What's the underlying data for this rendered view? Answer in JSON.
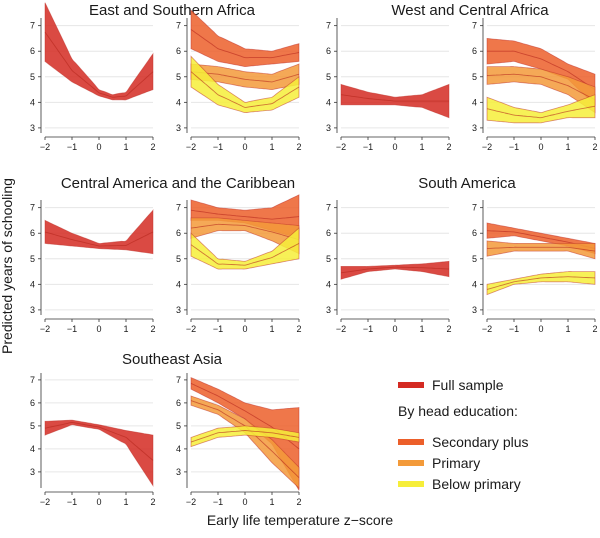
{
  "figure": {
    "xlabel": "Early life temperature z−score",
    "ylabel": "Predicted years of schooling"
  },
  "legend": {
    "items": [
      {
        "label": "Full sample",
        "color": "#d42a22"
      },
      {
        "label": "Secondary plus",
        "color": "#ec5f2a"
      },
      {
        "label": "Primary",
        "color": "#f39a3a"
      },
      {
        "label": "Below primary",
        "color": "#f6ee3a"
      }
    ],
    "subheader": "By head education:"
  },
  "chart_data": [
    {
      "type": "area",
      "title": "East and Southern Africa",
      "xlim": [
        -2,
        2
      ],
      "ylim": [
        2.8,
        7.3
      ],
      "xticks": [
        -2,
        -1,
        0,
        1,
        2
      ],
      "yticks": [
        3,
        4,
        5,
        6,
        7
      ],
      "series": [
        {
          "name": "Full sample",
          "color": "#d42a22",
          "x": [
            -2,
            -1,
            0,
            0.5,
            1,
            2
          ],
          "lower": [
            5.6,
            4.8,
            4.25,
            4.1,
            4.1,
            4.5
          ],
          "upper": [
            7.9,
            5.7,
            4.5,
            4.3,
            4.4,
            5.9
          ]
        }
      ]
    },
    {
      "type": "area",
      "title": "",
      "xlim": [
        -2,
        2
      ],
      "ylim": [
        2.8,
        7.3
      ],
      "xticks": [
        -2,
        -1,
        0,
        1,
        2
      ],
      "yticks": [
        3,
        4,
        5,
        6,
        7
      ],
      "series": [
        {
          "name": "Secondary plus",
          "color": "#ec5f2a",
          "x": [
            -2,
            -1,
            0,
            1,
            2
          ],
          "lower": [
            6.1,
            5.6,
            5.4,
            5.5,
            5.6
          ],
          "upper": [
            7.6,
            6.6,
            6.1,
            6.0,
            6.3
          ]
        },
        {
          "name": "Primary",
          "color": "#f39a3a",
          "x": [
            -2,
            -1,
            0,
            1,
            2
          ],
          "lower": [
            4.9,
            4.8,
            4.6,
            4.5,
            4.7
          ],
          "upper": [
            5.5,
            5.4,
            5.2,
            5.1,
            5.5
          ]
        },
        {
          "name": "Below primary",
          "color": "#f6ee3a",
          "x": [
            -2,
            -1,
            0,
            1,
            2
          ],
          "lower": [
            4.6,
            3.9,
            3.6,
            3.7,
            4.2
          ],
          "upper": [
            5.8,
            4.7,
            4.0,
            4.2,
            5.0
          ]
        }
      ]
    },
    {
      "type": "area",
      "title": "West and Central Africa",
      "xlim": [
        -2,
        2
      ],
      "ylim": [
        2.8,
        7.3
      ],
      "xticks": [
        -2,
        -1,
        0,
        1,
        2
      ],
      "yticks": [
        3,
        4,
        5,
        6,
        7
      ],
      "series": [
        {
          "name": "Full sample",
          "color": "#d42a22",
          "x": [
            -2,
            -1,
            0,
            1,
            2
          ],
          "lower": [
            3.9,
            3.9,
            3.9,
            3.8,
            3.4
          ],
          "upper": [
            4.7,
            4.4,
            4.2,
            4.3,
            4.7
          ]
        }
      ]
    },
    {
      "type": "area",
      "title": "",
      "xlim": [
        -2,
        2
      ],
      "ylim": [
        2.8,
        7.3
      ],
      "xticks": [
        -2,
        -1,
        0,
        1,
        2
      ],
      "yticks": [
        3,
        4,
        5,
        6,
        7
      ],
      "series": [
        {
          "name": "Secondary plus",
          "color": "#ec5f2a",
          "x": [
            -2,
            -1,
            0,
            1,
            2
          ],
          "lower": [
            5.5,
            5.6,
            5.3,
            4.9,
            3.9
          ],
          "upper": [
            6.5,
            6.4,
            6.1,
            5.5,
            5.1
          ]
        },
        {
          "name": "Primary",
          "color": "#f39a3a",
          "x": [
            -2,
            -1,
            0,
            1,
            2
          ],
          "lower": [
            4.7,
            4.8,
            4.7,
            4.3,
            3.6
          ],
          "upper": [
            5.4,
            5.4,
            5.3,
            5.0,
            4.6
          ]
        },
        {
          "name": "Below primary",
          "color": "#f6ee3a",
          "x": [
            -2,
            -1,
            0,
            1,
            2
          ],
          "lower": [
            3.3,
            3.2,
            3.2,
            3.4,
            3.4
          ],
          "upper": [
            4.2,
            3.8,
            3.6,
            3.9,
            4.3
          ]
        }
      ]
    },
    {
      "type": "area",
      "title": "Central America and the Caribbean",
      "xlim": [
        -2,
        2
      ],
      "ylim": [
        2.8,
        7.3
      ],
      "xticks": [
        -2,
        -1,
        0,
        1,
        2
      ],
      "yticks": [
        3,
        4,
        5,
        6,
        7
      ],
      "series": [
        {
          "name": "Full sample",
          "color": "#d42a22",
          "x": [
            -2,
            -1,
            0,
            1,
            2
          ],
          "lower": [
            5.6,
            5.5,
            5.4,
            5.35,
            5.2
          ],
          "upper": [
            6.5,
            6.0,
            5.6,
            5.7,
            6.9
          ]
        }
      ]
    },
    {
      "type": "area",
      "title": "",
      "xlim": [
        -2,
        2
      ],
      "ylim": [
        2.8,
        7.3
      ],
      "xticks": [
        -2,
        -1,
        0,
        1,
        2
      ],
      "yticks": [
        3,
        4,
        5,
        6,
        7
      ],
      "series": [
        {
          "name": "Secondary plus",
          "color": "#ec5f2a",
          "x": [
            -2,
            -1,
            0,
            1,
            2
          ],
          "lower": [
            6.5,
            6.5,
            6.4,
            6.1,
            5.8
          ],
          "upper": [
            7.3,
            7.0,
            6.9,
            7.0,
            7.5
          ]
        },
        {
          "name": "Primary",
          "color": "#f39a3a",
          "x": [
            -2,
            -1,
            0,
            1,
            2
          ],
          "lower": [
            5.8,
            6.1,
            6.1,
            5.7,
            5.2
          ],
          "upper": [
            6.6,
            6.6,
            6.5,
            6.4,
            6.3
          ]
        },
        {
          "name": "Below primary",
          "color": "#f6ee3a",
          "x": [
            -2,
            -1,
            0,
            1,
            2
          ],
          "lower": [
            5.1,
            4.6,
            4.6,
            4.8,
            5.0
          ],
          "upper": [
            6.0,
            5.0,
            4.9,
            5.3,
            6.2
          ]
        }
      ]
    },
    {
      "type": "area",
      "title": "South America",
      "xlim": [
        -2,
        2
      ],
      "ylim": [
        2.8,
        7.3
      ],
      "xticks": [
        -2,
        -1,
        0,
        1,
        2
      ],
      "yticks": [
        3,
        4,
        5,
        6,
        7
      ],
      "series": [
        {
          "name": "Full sample",
          "color": "#d42a22",
          "x": [
            -2,
            -1,
            0,
            1,
            2
          ],
          "lower": [
            4.2,
            4.5,
            4.6,
            4.5,
            4.3
          ],
          "upper": [
            4.7,
            4.7,
            4.75,
            4.8,
            4.9
          ]
        }
      ]
    },
    {
      "type": "area",
      "title": "",
      "xlim": [
        -2,
        2
      ],
      "ylim": [
        2.8,
        7.3
      ],
      "xticks": [
        -2,
        -1,
        0,
        1,
        2
      ],
      "yticks": [
        3,
        4,
        5,
        6,
        7
      ],
      "series": [
        {
          "name": "Secondary plus",
          "color": "#ec5f2a",
          "x": [
            -2,
            -1,
            0,
            1,
            2
          ],
          "lower": [
            5.8,
            5.9,
            5.7,
            5.5,
            5.2
          ],
          "upper": [
            6.4,
            6.2,
            6.0,
            5.8,
            5.6
          ]
        },
        {
          "name": "Primary",
          "color": "#f39a3a",
          "x": [
            -2,
            -1,
            0,
            1,
            2
          ],
          "lower": [
            5.1,
            5.3,
            5.3,
            5.3,
            5.0
          ],
          "upper": [
            5.7,
            5.6,
            5.6,
            5.6,
            5.6
          ]
        },
        {
          "name": "Below primary",
          "color": "#f6ee3a",
          "x": [
            -2,
            -1,
            0,
            1,
            2
          ],
          "lower": [
            3.6,
            4.0,
            4.1,
            4.1,
            4.0
          ],
          "upper": [
            4.0,
            4.2,
            4.4,
            4.5,
            4.5
          ]
        }
      ]
    },
    {
      "type": "area",
      "title": "Southeast Asia",
      "xlim": [
        -2,
        2
      ],
      "ylim": [
        2.3,
        7.3
      ],
      "xticks": [
        -2,
        -1,
        0,
        1,
        2
      ],
      "yticks": [
        3,
        4,
        5,
        6,
        7
      ],
      "series": [
        {
          "name": "Full sample",
          "color": "#d42a22",
          "x": [
            -2,
            -1,
            0,
            1,
            2
          ],
          "lower": [
            4.6,
            5.05,
            4.85,
            4.2,
            2.4
          ],
          "upper": [
            5.2,
            5.25,
            5.05,
            4.8,
            4.6
          ]
        }
      ]
    },
    {
      "type": "area",
      "title": "",
      "xlim": [
        -2,
        2
      ],
      "ylim": [
        2.3,
        7.3
      ],
      "xticks": [
        -2,
        -1,
        0,
        1,
        2
      ],
      "yticks": [
        3,
        4,
        5,
        6,
        7
      ],
      "series": [
        {
          "name": "Secondary plus",
          "color": "#ec5f2a",
          "x": [
            -2,
            -1,
            0,
            1,
            2
          ],
          "lower": [
            6.6,
            6.0,
            5.3,
            4.2,
            2.2
          ],
          "upper": [
            7.1,
            6.6,
            6.0,
            5.7,
            5.8
          ]
        },
        {
          "name": "Primary",
          "color": "#f39a3a",
          "x": [
            -2,
            -1,
            0,
            1,
            2
          ],
          "lower": [
            5.9,
            5.5,
            4.7,
            3.4,
            2.3
          ],
          "upper": [
            6.3,
            5.9,
            5.3,
            4.4,
            3.2
          ]
        },
        {
          "name": "Below primary",
          "color": "#f6ee3a",
          "x": [
            -2,
            -1,
            0,
            1,
            2
          ],
          "lower": [
            4.1,
            4.5,
            4.6,
            4.5,
            4.3
          ],
          "upper": [
            4.5,
            4.9,
            5.0,
            4.9,
            4.7
          ]
        }
      ]
    }
  ]
}
